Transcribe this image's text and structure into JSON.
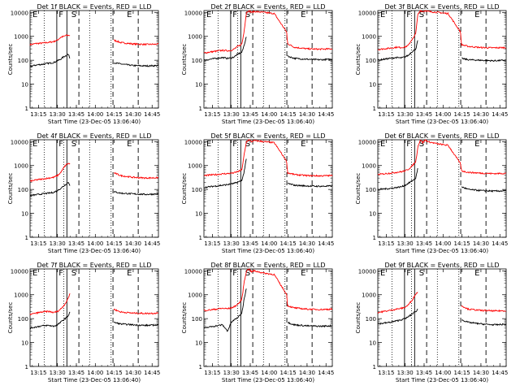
{
  "figure": {
    "ylabel": "Counts/sec",
    "xlabel": "Start Time (23-Dec-05 13:06:40)",
    "x_ticks": [
      "13:15",
      "13:30",
      "13:45",
      "14:00",
      "14:15",
      "14:30",
      "14:45"
    ],
    "x_tick_minutes": [
      15,
      30,
      45,
      60,
      75,
      90,
      105
    ],
    "x_range_minutes": [
      8.33,
      110
    ],
    "y_ticks": [
      "1",
      "10",
      "100",
      "1000",
      "10000"
    ],
    "y_tick_values": [
      1,
      10,
      100,
      1000,
      10000
    ],
    "y_scale": "log",
    "ylim": [
      1,
      12000
    ],
    "region_labels": [
      "E",
      "F",
      "S",
      "E"
    ],
    "colors": {
      "events": "#000000",
      "lld": "#ff0000"
    }
  },
  "chart_data": [
    {
      "type": "line",
      "title": "Det 1f BLACK = Events, RED = LLD",
      "x_minutes": [
        8.33,
        13,
        18,
        23,
        27,
        30,
        32.5,
        35,
        37,
        38.5,
        40,
        42,
        44,
        46,
        48,
        56,
        64,
        73.9,
        74.5,
        80,
        90,
        100,
        110
      ],
      "series": [
        {
          "name": "Events",
          "color": "#000000",
          "values": [
            null,
            null,
            null,
            null,
            null,
            null,
            null,
            null,
            null,
            null,
            null,
            null,
            null,
            null,
            null,
            null,
            null,
            null,
            null,
            null,
            null,
            null,
            null
          ]
        },
        {
          "name": "LLD",
          "color": "#ff0000",
          "values": [
            null,
            null,
            null,
            null,
            null,
            null,
            null,
            null,
            null,
            null,
            null,
            null,
            null,
            null,
            null,
            null,
            null,
            null,
            null,
            null,
            null,
            null,
            null
          ]
        }
      ],
      "events": [
        55,
        63,
        68,
        75,
        80,
        95,
        110,
        140,
        160,
        180,
        120,
        null,
        null,
        null,
        null,
        null,
        null,
        null,
        80,
        70,
        60,
        58,
        60
      ],
      "lld": [
        450,
        500,
        520,
        560,
        600,
        700,
        900,
        1000,
        1100,
        1100,
        1100,
        null,
        null,
        null,
        null,
        null,
        null,
        null,
        700,
        550,
        480,
        460,
        470
      ],
      "lines": {
        "dotted": [
          19.5,
          55.5,
          72.5
        ],
        "solid": [
          29.5,
          37.5
        ],
        "dashed": [
          47,
          74,
          94
        ]
      },
      "blank_min": [
        41,
        45
      ]
    },
    {
      "type": "line",
      "title": "Det 2f BLACK = Events, RED = LLD",
      "x_minutes": [
        8.33,
        13,
        18,
        23,
        27,
        30,
        32.5,
        35,
        37,
        38.5,
        40,
        42,
        44,
        46,
        48,
        56,
        64,
        73.9,
        74.5,
        80,
        90,
        100,
        110
      ],
      "series": [
        {
          "name": "Events",
          "color": "#000000",
          "values": []
        },
        {
          "name": "LLD",
          "color": "#ff0000",
          "values": []
        }
      ],
      "events": [
        100,
        110,
        120,
        130,
        120,
        125,
        140,
        180,
        200,
        220,
        400,
        1000,
        null,
        null,
        null,
        null,
        null,
        null,
        150,
        120,
        110,
        105,
        110
      ],
      "lld": [
        200,
        220,
        240,
        260,
        250,
        260,
        300,
        380,
        420,
        500,
        1500,
        10000,
        12000,
        10000,
        11000,
        10000,
        9000,
        1500,
        500,
        350,
        300,
        290,
        300
      ],
      "lines": {
        "dotted": [
          19.5,
          35,
          55.5,
          72.5
        ],
        "solid": [
          29.5,
          37.5
        ],
        "dashed": [
          47,
          74,
          94
        ]
      },
      "blank_min": [
        40,
        45
      ]
    },
    {
      "type": "line",
      "title": "Det 3f BLACK = Events, RED = LLD",
      "x_minutes": [
        8.33,
        13,
        18,
        23,
        27,
        30,
        32.5,
        35,
        37,
        38.5,
        40,
        42,
        44,
        46,
        48,
        56,
        64,
        73.9,
        74.5,
        80,
        90,
        100,
        110
      ],
      "series": [
        {
          "name": "Events",
          "color": "#000000",
          "values": []
        },
        {
          "name": "LLD",
          "color": "#ff0000",
          "values": []
        }
      ],
      "events": [
        100,
        110,
        120,
        130,
        125,
        140,
        160,
        220,
        260,
        300,
        700,
        null,
        null,
        null,
        null,
        null,
        null,
        null,
        120,
        105,
        100,
        95,
        100
      ],
      "lld": [
        280,
        300,
        320,
        350,
        340,
        360,
        420,
        700,
        900,
        1500,
        8000,
        12000,
        11000,
        12000,
        11000,
        10000,
        9000,
        1500,
        450,
        380,
        340,
        330,
        340
      ],
      "lines": {
        "dotted": [
          19.5,
          35,
          55.5,
          72.5
        ],
        "solid": [
          29.5,
          37.5
        ],
        "dashed": [
          47,
          74,
          94
        ]
      },
      "blank_min": [
        40,
        45
      ]
    },
    {
      "type": "line",
      "title": "Det 4f BLACK = Events, RED = LLD",
      "x_minutes": [
        8.33,
        13,
        18,
        23,
        27,
        30,
        32.5,
        35,
        37,
        38.5,
        40,
        42,
        44,
        46,
        48,
        56,
        64,
        73.9,
        74.5,
        80,
        90,
        100,
        110
      ],
      "series": [
        {
          "name": "Events",
          "color": "#000000",
          "values": []
        },
        {
          "name": "LLD",
          "color": "#ff0000",
          "values": []
        }
      ],
      "events": [
        55,
        60,
        65,
        70,
        75,
        90,
        110,
        140,
        170,
        200,
        150,
        null,
        null,
        null,
        null,
        null,
        null,
        null,
        80,
        70,
        65,
        62,
        65
      ],
      "lld": [
        220,
        250,
        270,
        300,
        320,
        380,
        500,
        800,
        1100,
        1200,
        1200,
        null,
        null,
        null,
        null,
        null,
        null,
        null,
        500,
        380,
        320,
        300,
        310
      ],
      "lines": {
        "dotted": [
          19.5,
          35,
          55.5,
          72.5
        ],
        "solid": [
          29.5,
          37.5
        ],
        "dashed": [
          47,
          74,
          94
        ]
      },
      "blank_min": [
        40,
        45
      ]
    },
    {
      "type": "line",
      "title": "Det 5f BLACK = Events, RED = LLD",
      "x_minutes": [
        8.33,
        13,
        18,
        23,
        27,
        30,
        32.5,
        35,
        37,
        38.5,
        40,
        42,
        44,
        46,
        48,
        56,
        64,
        73.9,
        74.5,
        80,
        90,
        100,
        110
      ],
      "series": [
        {
          "name": "Events",
          "color": "#000000",
          "values": []
        },
        {
          "name": "LLD",
          "color": "#ff0000",
          "values": []
        }
      ],
      "events": [
        120,
        130,
        140,
        150,
        160,
        170,
        180,
        200,
        220,
        250,
        500,
        2000,
        null,
        null,
        null,
        null,
        null,
        null,
        180,
        150,
        140,
        135,
        140
      ],
      "lld": [
        380,
        400,
        420,
        450,
        460,
        480,
        500,
        560,
        600,
        700,
        2500,
        10000,
        12000,
        10000,
        11000,
        10000,
        9000,
        1500,
        500,
        420,
        380,
        370,
        380
      ],
      "lines": {
        "dotted": [
          19.5,
          35,
          55.5,
          72.5
        ],
        "solid": [
          29.5,
          37.5
        ],
        "dashed": [
          47,
          74,
          94
        ]
      },
      "blank_min": [
        40,
        45
      ]
    },
    {
      "type": "line",
      "title": "Det 6f BLACK = Events, RED = LLD",
      "x_minutes": [
        8.33,
        13,
        18,
        23,
        27,
        30,
        32.5,
        35,
        37,
        38.5,
        40,
        42,
        44,
        46,
        48,
        56,
        64,
        73.9,
        74.5,
        80,
        90,
        100,
        110
      ],
      "series": [
        {
          "name": "Events",
          "color": "#000000",
          "values": []
        },
        {
          "name": "LLD",
          "color": "#ff0000",
          "values": []
        }
      ],
      "events": [
        100,
        105,
        110,
        120,
        130,
        150,
        180,
        220,
        260,
        300,
        800,
        null,
        null,
        null,
        null,
        null,
        null,
        null,
        130,
        100,
        90,
        85,
        88
      ],
      "lld": [
        420,
        450,
        480,
        520,
        550,
        600,
        700,
        900,
        1200,
        1500,
        6000,
        12000,
        9000,
        12000,
        10000,
        8000,
        7000,
        1200,
        600,
        520,
        480,
        460,
        470
      ],
      "lines": {
        "dotted": [
          19.5,
          35,
          55.5,
          72.5
        ],
        "solid": [
          29.5,
          37.5
        ],
        "dashed": [
          47,
          74,
          94
        ]
      },
      "blank_min": [
        40,
        45
      ]
    },
    {
      "type": "line",
      "title": "Det 7f BLACK = Events, RED = LLD",
      "x_minutes": [
        8.33,
        13,
        18,
        23,
        27,
        30,
        32.5,
        35,
        37,
        38.5,
        40,
        42,
        44,
        46,
        48,
        56,
        64,
        73.9,
        74.5,
        80,
        90,
        100,
        110
      ],
      "series": [
        {
          "name": "Events",
          "color": "#000000",
          "values": []
        },
        {
          "name": "LLD",
          "color": "#ff0000",
          "values": []
        }
      ],
      "events": [
        40,
        45,
        50,
        52,
        48,
        55,
        70,
        90,
        110,
        130,
        200,
        null,
        null,
        null,
        null,
        null,
        null,
        null,
        70,
        60,
        55,
        52,
        55
      ],
      "lld": [
        150,
        170,
        190,
        200,
        180,
        200,
        250,
        350,
        500,
        700,
        1200,
        null,
        null,
        null,
        null,
        null,
        null,
        null,
        250,
        190,
        170,
        165,
        170
      ],
      "lines": {
        "dotted": [
          19.5,
          35,
          55.5,
          72.5
        ],
        "solid": [
          29.5,
          37.5
        ],
        "dashed": [
          47,
          74,
          94
        ]
      },
      "blank_min": [
        40,
        45
      ]
    },
    {
      "type": "line",
      "title": "Det 8f BLACK = Events, RED = LLD",
      "x_minutes": [
        8.33,
        13,
        18,
        23,
        27,
        30,
        32.5,
        35,
        37,
        38.5,
        40,
        42,
        44,
        46,
        48,
        56,
        64,
        73.9,
        74.5,
        80,
        90,
        100,
        110
      ],
      "series": [
        {
          "name": "Events",
          "color": "#000000",
          "values": []
        },
        {
          "name": "LLD",
          "color": "#ff0000",
          "values": []
        }
      ],
      "events": [
        40,
        45,
        50,
        55,
        30,
        70,
        90,
        110,
        140,
        180,
        600,
        2000,
        null,
        null,
        null,
        null,
        null,
        null,
        70,
        55,
        50,
        48,
        50
      ],
      "lld": [
        220,
        230,
        250,
        270,
        260,
        280,
        320,
        400,
        500,
        700,
        3000,
        10000,
        12000,
        9000,
        10000,
        8000,
        7000,
        1000,
        350,
        280,
        250,
        240,
        250
      ],
      "lines": {
        "dotted": [
          19.5,
          35,
          55.5,
          72.5
        ],
        "solid": [
          29.5,
          37.5
        ],
        "dashed": [
          47,
          74,
          94
        ]
      },
      "blank_min": [
        40,
        45
      ],
      "spike_min": [
        22,
        24
      ]
    },
    {
      "type": "line",
      "title": "Det 9f BLACK = Events, RED = LLD",
      "x_minutes": [
        8.33,
        13,
        18,
        23,
        27,
        30,
        32.5,
        35,
        37,
        38.5,
        40,
        42,
        44,
        46,
        48,
        56,
        64,
        73.9,
        74.5,
        80,
        90,
        100,
        110
      ],
      "series": [
        {
          "name": "Events",
          "color": "#000000",
          "values": []
        },
        {
          "name": "LLD",
          "color": "#ff0000",
          "values": []
        }
      ],
      "events": [
        60,
        65,
        70,
        80,
        90,
        100,
        120,
        150,
        180,
        200,
        250,
        null,
        null,
        null,
        null,
        null,
        null,
        null,
        90,
        70,
        60,
        55,
        58
      ],
      "lld": [
        180,
        200,
        220,
        250,
        270,
        300,
        380,
        550,
        800,
        1100,
        1300,
        null,
        null,
        null,
        null,
        null,
        null,
        null,
        350,
        250,
        220,
        210,
        215
      ],
      "lines": {
        "dotted": [
          19.5,
          35,
          55.5,
          72.5
        ],
        "solid": [
          29.5,
          37.5
        ],
        "dashed": [
          47,
          74,
          94
        ]
      },
      "blank_min": [
        40,
        45
      ]
    }
  ]
}
